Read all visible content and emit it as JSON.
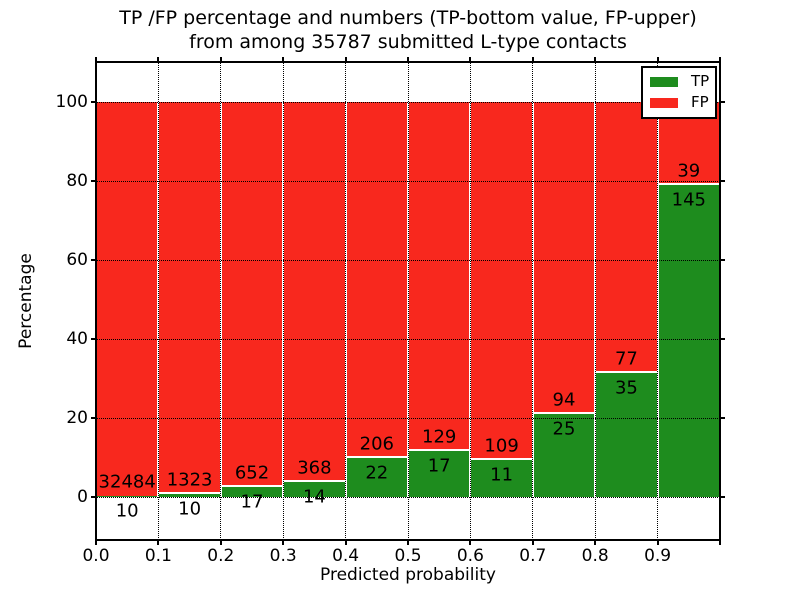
{
  "figure": {
    "title_line1": "TP /FP percentage and numbers (TP-bottom value, FP-upper)",
    "title_line2": "from among 35787 submitted L-type contacts"
  },
  "chart_data": {
    "type": "bar",
    "subtype": "100%-stacked histogram",
    "title": "TP /FP percentage and numbers (TP-bottom value, FP-upper) from among 35787 submitted L-type contacts",
    "xlabel": "Predicted probability",
    "ylabel": "Percentage",
    "total_submitted": 35787,
    "bin_edges": [
      0.0,
      0.1,
      0.2,
      0.3,
      0.4,
      0.5,
      0.6,
      0.7,
      0.8,
      0.9,
      1.0
    ],
    "x_tick_labels": [
      "0.0",
      "0.1",
      "0.2",
      "0.3",
      "0.4",
      "0.5",
      "0.6",
      "0.7",
      "0.8",
      "0.9"
    ],
    "y_ticks": [
      0,
      20,
      40,
      60,
      80,
      100
    ],
    "xlim": [
      0,
      1
    ],
    "ylim": [
      -11,
      110
    ],
    "grid": true,
    "grid_style": "dotted",
    "legend_position": "upper right",
    "series": [
      {
        "name": "TP",
        "color": "#1e8c1e",
        "counts": [
          10,
          10,
          17,
          14,
          22,
          17,
          11,
          25,
          35,
          145
        ]
      },
      {
        "name": "FP",
        "color": "#f8281e",
        "counts": [
          32484,
          1323,
          652,
          368,
          206,
          129,
          109,
          94,
          77,
          39
        ]
      }
    ],
    "tp_percent_of_bin": [
      0.03,
      0.75,
      2.54,
      3.66,
      9.65,
      11.64,
      9.17,
      21.01,
      31.25,
      78.8
    ],
    "bar_edge_color": "#ffffff"
  }
}
